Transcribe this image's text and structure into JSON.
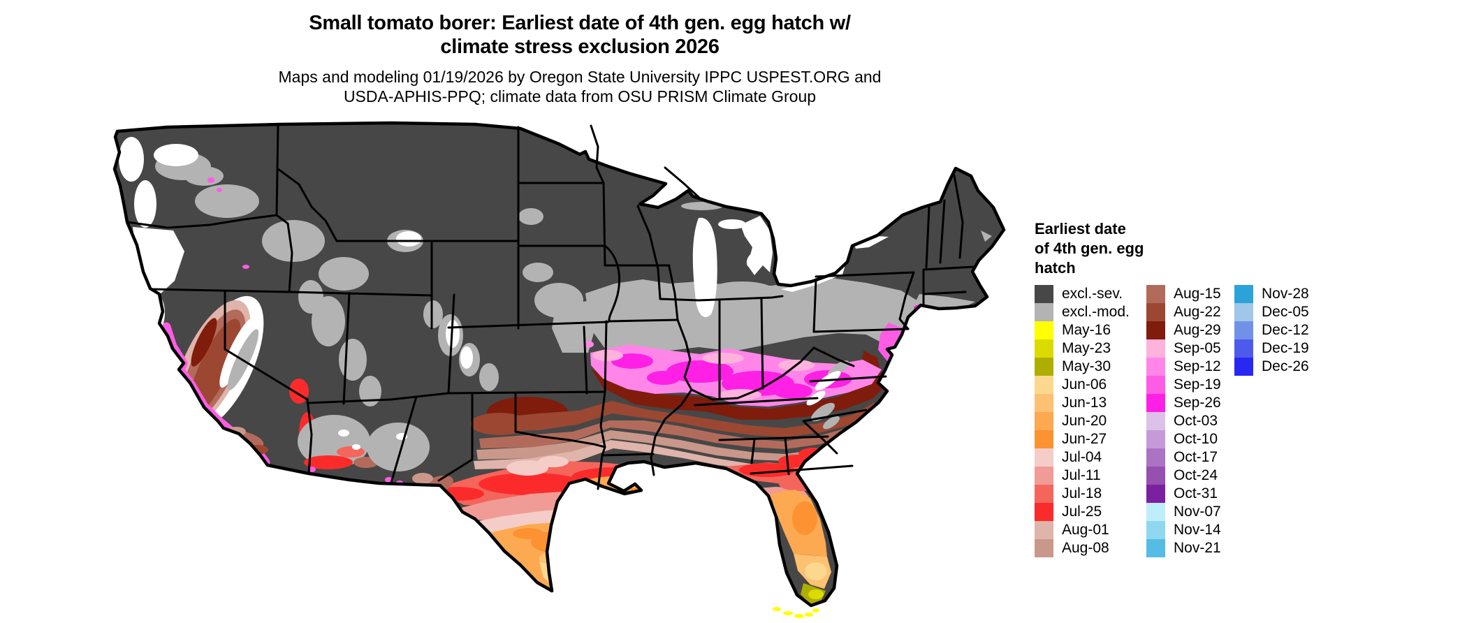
{
  "title": {
    "line1": "Small tomato borer: Earliest date of 4th gen. egg hatch w/",
    "line2": "climate stress exclusion 2026"
  },
  "subtitle": {
    "line1": "Maps and modeling 01/19/2026 by Oregon State University IPPC USPEST.ORG and",
    "line2": "USDA-APHIS-PPQ; climate data from OSU PRISM Climate Group"
  },
  "legend": {
    "title": "Earliest date\nof 4th gen. egg\nhatch",
    "columns": [
      {
        "entries": [
          {
            "label": "excl.-sev.",
            "color": "#474747"
          },
          {
            "label": "excl.-mod.",
            "color": "#b3b3b3"
          },
          {
            "label": "May-16",
            "color": "#ffff00"
          },
          {
            "label": "May-23",
            "color": "#dbdb00"
          },
          {
            "label": "May-30",
            "color": "#aeae00"
          },
          {
            "label": "Jun-06",
            "color": "#fcd88e"
          },
          {
            "label": "Jun-13",
            "color": "#fdc171"
          },
          {
            "label": "Jun-20",
            "color": "#fca951"
          },
          {
            "label": "Jun-27",
            "color": "#fc9232"
          },
          {
            "label": "Jul-04",
            "color": "#f5cdc8"
          },
          {
            "label": "Jul-11",
            "color": "#f19b96"
          },
          {
            "label": "Jul-18",
            "color": "#f4655c"
          },
          {
            "label": "Jul-25",
            "color": "#fc2b2b"
          },
          {
            "label": "Aug-01",
            "color": "#dfb4ab"
          },
          {
            "label": "Aug-08",
            "color": "#c9988a"
          }
        ]
      },
      {
        "entries": [
          {
            "label": "Aug-15",
            "color": "#b26b5b"
          },
          {
            "label": "Aug-22",
            "color": "#9c4732"
          },
          {
            "label": "Aug-29",
            "color": "#7f1c0c"
          },
          {
            "label": "Sep-05",
            "color": "#ffb2dc"
          },
          {
            "label": "Sep-12",
            "color": "#ff86e8"
          },
          {
            "label": "Sep-19",
            "color": "#ff5ce6"
          },
          {
            "label": "Sep-26",
            "color": "#fe20e4"
          },
          {
            "label": "Oct-03",
            "color": "#dcc1e9"
          },
          {
            "label": "Oct-10",
            "color": "#c49bd8"
          },
          {
            "label": "Oct-17",
            "color": "#ab73c3"
          },
          {
            "label": "Oct-24",
            "color": "#9650b0"
          },
          {
            "label": "Oct-31",
            "color": "#7c20a2"
          },
          {
            "label": "Nov-07",
            "color": "#bfeefb"
          },
          {
            "label": "Nov-14",
            "color": "#8fd8f0"
          },
          {
            "label": "Nov-21",
            "color": "#55bde4"
          }
        ]
      },
      {
        "entries": [
          {
            "label": "Nov-28",
            "color": "#2ba3d8"
          },
          {
            "label": "Dec-05",
            "color": "#a0c6e8"
          },
          {
            "label": "Dec-12",
            "color": "#7191e8"
          },
          {
            "label": "Dec-19",
            "color": "#4d5bec"
          },
          {
            "label": "Dec-26",
            "color": "#2828f2"
          }
        ]
      }
    ]
  },
  "map": {
    "colors": {
      "excl-sev": "#474747",
      "excl-mod": "#b3b3b3",
      "May-16": "#ffff00",
      "May-23": "#dbdb00",
      "May-30": "#aeae00",
      "Jun-06": "#fcd88e",
      "Jun-13": "#fdc171",
      "Jun-20": "#fca951",
      "Jun-27": "#fc9232",
      "Jul-04": "#f5cdc8",
      "Jul-11": "#f19b96",
      "Jul-18": "#f4655c",
      "Jul-25": "#fc2b2b",
      "Aug-01": "#dfb4ab",
      "Aug-08": "#c9988a",
      "Aug-15": "#b26b5b",
      "Aug-22": "#9c4732",
      "Aug-29": "#7f1c0c",
      "Sep-05": "#ffb2dc",
      "Sep-12": "#ff86e8",
      "Sep-19": "#ff5ce6",
      "Sep-26": "#fe20e4",
      "Oct-03": "#dcc1e9",
      "Oct-10": "#c49bd8",
      "Oct-17": "#ab73c3",
      "Oct-24": "#9650b0",
      "Oct-31": "#7c20a2",
      "Nov-07": "#bfeefb",
      "Nov-14": "#8fd8f0",
      "Nov-21": "#55bde4",
      "Nov-28": "#2ba3d8",
      "Dec-05": "#a0c6e8",
      "Dec-12": "#7191e8",
      "Dec-19": "#4d5bec",
      "Dec-26": "#2828f2",
      "water": "#ffffff",
      "no-data": "#ffffff",
      "state-border": "#000000"
    }
  }
}
